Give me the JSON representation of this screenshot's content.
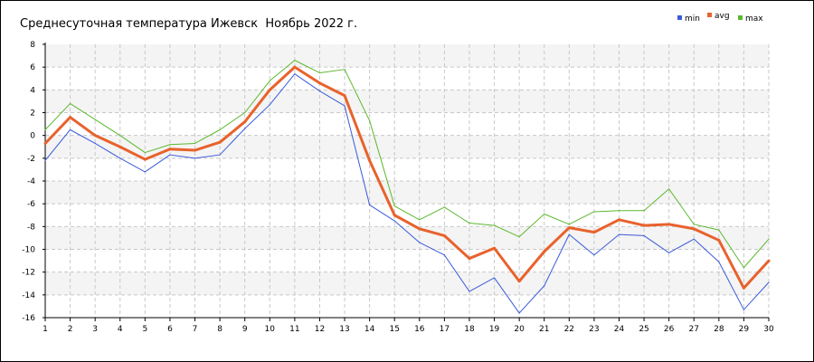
{
  "chart_data": {
    "type": "line",
    "title": "Среднесуточная температура Ижевск  Ноябрь 2022 г.",
    "xlabel": "",
    "ylabel": "",
    "x": [
      1,
      2,
      3,
      4,
      5,
      6,
      7,
      8,
      9,
      10,
      11,
      12,
      13,
      14,
      15,
      16,
      17,
      18,
      19,
      20,
      21,
      22,
      23,
      24,
      25,
      26,
      27,
      28,
      29,
      30
    ],
    "xlim": [
      1,
      30
    ],
    "ylim": [
      -16,
      8
    ],
    "ytick_step": 2,
    "grid": true,
    "legend_position": "top-right",
    "series": [
      {
        "name": "min",
        "color": "#3b5bdb",
        "values": [
          -2.2,
          0.5,
          -0.7,
          -2.0,
          -3.2,
          -1.7,
          -2.0,
          -1.7,
          0.6,
          2.7,
          5.4,
          3.9,
          2.6,
          -6.1,
          -7.5,
          -9.4,
          -10.5,
          -13.7,
          -12.5,
          -15.6,
          -13.2,
          -8.7,
          -10.5,
          -8.7,
          -8.8,
          -10.3,
          -9.1,
          -11.1,
          -15.3,
          -12.9
        ]
      },
      {
        "name": "avg",
        "color": "#e8622c",
        "values": [
          -0.7,
          1.6,
          0.0,
          -1.0,
          -2.1,
          -1.2,
          -1.3,
          -0.6,
          1.2,
          4.0,
          6.0,
          4.6,
          3.5,
          -2.2,
          -7.0,
          -8.2,
          -8.8,
          -10.8,
          -9.9,
          -12.8,
          -10.2,
          -8.1,
          -8.5,
          -7.4,
          -7.9,
          -7.8,
          -8.2,
          -9.2,
          -13.4,
          -11.0
        ]
      },
      {
        "name": "max",
        "color": "#5cb82e",
        "values": [
          0.5,
          2.8,
          1.4,
          0.0,
          -1.5,
          -0.8,
          -0.7,
          0.5,
          2.0,
          4.8,
          6.6,
          5.5,
          5.8,
          1.3,
          -6.2,
          -7.4,
          -6.3,
          -7.7,
          -7.9,
          -8.9,
          -6.9,
          -7.8,
          -6.7,
          -6.6,
          -6.6,
          -4.7,
          -7.8,
          -8.3,
          -11.6,
          -9.1
        ]
      }
    ]
  }
}
